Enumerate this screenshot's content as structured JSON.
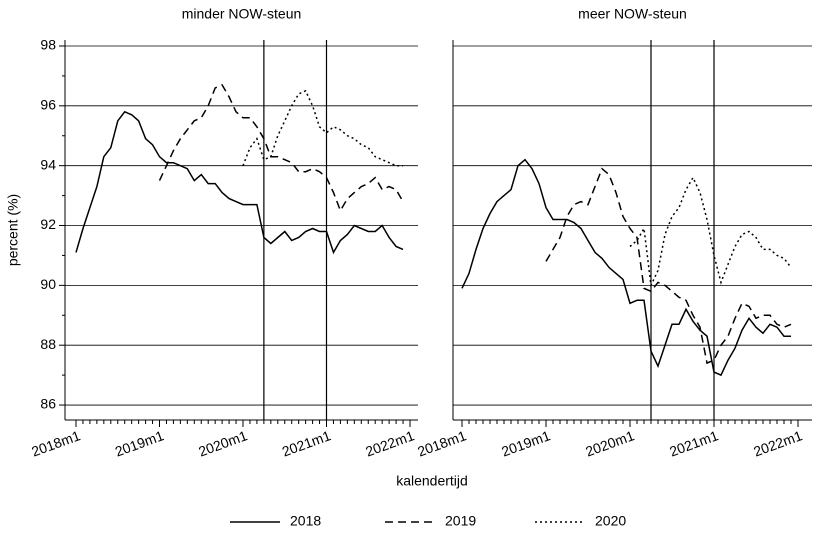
{
  "chart_data": [
    {
      "type": "line",
      "title": "minder NOW-steun",
      "ylabel": "percent (%)",
      "xlabel": "kalendertijd",
      "categories": [
        "2018m1",
        null,
        null,
        null,
        null,
        null,
        null,
        null,
        null,
        null,
        null,
        null,
        "2019m1",
        null,
        null,
        null,
        null,
        null,
        null,
        null,
        null,
        null,
        null,
        null,
        "2020m1",
        null,
        null,
        null,
        null,
        null,
        null,
        null,
        null,
        null,
        null,
        null,
        "2021m1",
        null,
        null,
        null,
        null,
        null,
        null,
        null,
        null,
        null,
        null,
        null,
        "2022m1"
      ],
      "ylim": [
        85.5,
        98.2
      ],
      "yticks": [
        86,
        88,
        90,
        92,
        94,
        96,
        98
      ],
      "grid": true,
      "vlines": [
        27,
        36
      ],
      "series": [
        {
          "name": "2018",
          "color": "#000000",
          "dash": "solid",
          "values": [
            91.1,
            91.9,
            92.6,
            93.3,
            94.3,
            94.6,
            95.5,
            95.8,
            95.7,
            95.5,
            94.9,
            94.7,
            94.3,
            94.1,
            94.1,
            94.0,
            93.9,
            93.5,
            93.7,
            93.4,
            93.4,
            93.1,
            92.9,
            92.8,
            92.7,
            92.7,
            92.7,
            91.6,
            91.4,
            91.6,
            91.8,
            91.5,
            91.6,
            91.8,
            91.9,
            91.8,
            91.8,
            91.1,
            91.5,
            91.7,
            92.0,
            91.9,
            91.8,
            91.8,
            92.0,
            91.6,
            91.3,
            91.2,
            null
          ]
        },
        {
          "name": "2019",
          "color": "#000000",
          "dash": "dashed",
          "values": [
            null,
            null,
            null,
            null,
            null,
            null,
            null,
            null,
            null,
            null,
            null,
            null,
            93.5,
            94.0,
            94.5,
            94.9,
            95.2,
            95.5,
            95.6,
            96.0,
            96.6,
            96.7,
            96.3,
            95.8,
            95.6,
            95.6,
            95.3,
            94.9,
            94.3,
            94.3,
            94.2,
            94.1,
            93.8,
            93.8,
            93.9,
            93.8,
            93.6,
            93.1,
            92.5,
            92.9,
            93.1,
            93.3,
            93.4,
            93.6,
            93.2,
            93.3,
            93.2,
            92.8,
            null
          ]
        },
        {
          "name": "2020",
          "color": "#000000",
          "dash": "dotted",
          "values": [
            null,
            null,
            null,
            null,
            null,
            null,
            null,
            null,
            null,
            null,
            null,
            null,
            null,
            null,
            null,
            null,
            null,
            null,
            null,
            null,
            null,
            null,
            null,
            null,
            94.0,
            94.6,
            94.9,
            94.2,
            94.3,
            95.0,
            95.5,
            96.0,
            96.4,
            96.5,
            96.0,
            95.3,
            95.1,
            95.3,
            95.2,
            95.0,
            94.9,
            94.7,
            94.6,
            94.3,
            94.2,
            94.1,
            94.0,
            94.0,
            null
          ]
        }
      ]
    },
    {
      "type": "line",
      "title": "meer NOW-steun",
      "categories": [
        "2018m1",
        null,
        null,
        null,
        null,
        null,
        null,
        null,
        null,
        null,
        null,
        null,
        "2019m1",
        null,
        null,
        null,
        null,
        null,
        null,
        null,
        null,
        null,
        null,
        null,
        "2020m1",
        null,
        null,
        null,
        null,
        null,
        null,
        null,
        null,
        null,
        null,
        null,
        "2021m1",
        null,
        null,
        null,
        null,
        null,
        null,
        null,
        null,
        null,
        null,
        null,
        "2022m1"
      ],
      "ylim": [
        85.5,
        98.2
      ],
      "yticks": [
        86,
        88,
        90,
        92,
        94,
        96,
        98
      ],
      "grid": true,
      "vlines": [
        27,
        36
      ],
      "series": [
        {
          "name": "2018",
          "color": "#000000",
          "dash": "solid",
          "values": [
            89.9,
            90.4,
            91.2,
            91.9,
            92.4,
            92.8,
            93.0,
            93.2,
            94.0,
            94.2,
            93.9,
            93.4,
            92.6,
            92.2,
            92.2,
            92.2,
            92.1,
            91.9,
            91.5,
            91.1,
            90.9,
            90.6,
            90.4,
            90.2,
            89.4,
            89.5,
            89.5,
            87.8,
            87.3,
            88.0,
            88.7,
            88.7,
            89.2,
            88.8,
            88.5,
            88.3,
            87.1,
            87.0,
            87.5,
            87.9,
            88.5,
            88.9,
            88.6,
            88.4,
            88.7,
            88.6,
            88.3,
            88.3,
            null
          ]
        },
        {
          "name": "2019",
          "color": "#000000",
          "dash": "dashed",
          "values": [
            null,
            null,
            null,
            null,
            null,
            null,
            null,
            null,
            null,
            null,
            null,
            null,
            90.8,
            91.2,
            91.6,
            92.3,
            92.7,
            92.8,
            92.7,
            93.3,
            93.9,
            93.7,
            93.1,
            92.3,
            91.9,
            91.6,
            89.9,
            89.8,
            90.1,
            90.0,
            89.8,
            89.6,
            89.5,
            89.0,
            88.6,
            87.4,
            87.5,
            88.0,
            88.3,
            88.9,
            89.4,
            89.3,
            88.9,
            89.0,
            89.0,
            88.7,
            88.6,
            88.7,
            null
          ]
        },
        {
          "name": "2020",
          "color": "#000000",
          "dash": "dotted",
          "values": [
            null,
            null,
            null,
            null,
            null,
            null,
            null,
            null,
            null,
            null,
            null,
            null,
            null,
            null,
            null,
            null,
            null,
            null,
            null,
            null,
            null,
            null,
            null,
            null,
            91.3,
            91.5,
            91.9,
            90.0,
            90.5,
            91.7,
            92.3,
            92.6,
            93.2,
            93.6,
            93.1,
            92.2,
            91.0,
            90.1,
            90.7,
            91.3,
            91.7,
            91.8,
            91.6,
            91.2,
            91.2,
            91.0,
            90.9,
            90.6,
            null
          ]
        }
      ]
    }
  ]
}
